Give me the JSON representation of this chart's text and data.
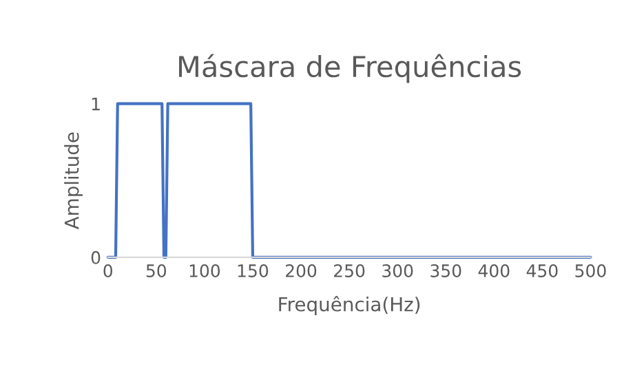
{
  "chart_data": {
    "type": "line",
    "title": "Máscara de Frequências",
    "xlabel": "Frequência(Hz)",
    "ylabel": "Amplitude",
    "x": [
      0,
      8,
      10,
      56,
      58,
      60,
      62,
      148,
      150,
      500
    ],
    "series": [
      {
        "color": "#4472c4",
        "values": [
          0,
          0,
          1,
          1,
          0,
          0,
          1,
          1,
          0,
          0
        ]
      }
    ],
    "xlim": [
      0,
      500
    ],
    "xticks": [
      0,
      50,
      100,
      150,
      200,
      250,
      300,
      350,
      400,
      450,
      500
    ],
    "ylim": [
      0,
      1
    ],
    "yticks": [
      0,
      1
    ],
    "legend": false,
    "marker": "none",
    "line_style": "solid"
  }
}
